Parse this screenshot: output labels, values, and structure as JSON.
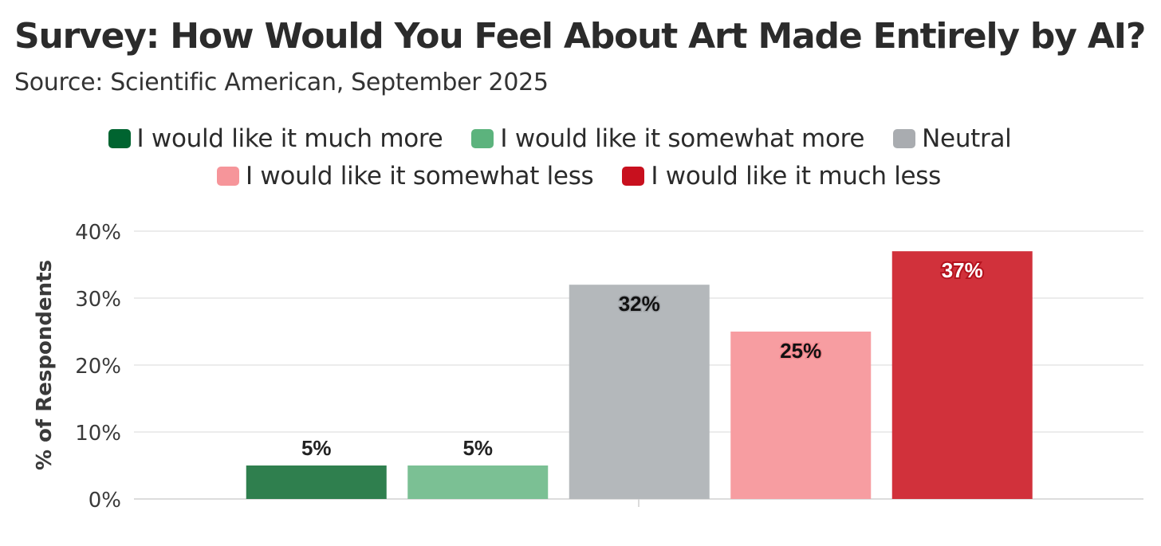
{
  "title": "Survey: How Would You Feel About Art Made Entirely by AI?",
  "subtitle": "Source: Scientific American, September 2025",
  "legend": [
    {
      "label": "I would like it much more",
      "color": "#006430"
    },
    {
      "label": "I would like it somewhat more",
      "color": "#5cb37d"
    },
    {
      "label": "Neutral",
      "color": "#a9acb0"
    },
    {
      "label": "I would like it somewhat less",
      "color": "#f6959a"
    },
    {
      "label": "I would like it much less",
      "color": "#c8101e"
    }
  ],
  "chart_data": {
    "type": "bar",
    "title": "Survey: How Would You Feel About Art Made Entirely by AI?",
    "subtitle": "Source: Scientific American, September 2025",
    "xlabel": "",
    "ylabel": "% of Respondents",
    "ylim": [
      0,
      40
    ],
    "yticks": [
      "0%",
      "10%",
      "20%",
      "30%",
      "40%"
    ],
    "grid": true,
    "legend_position": "top",
    "categories": [
      "I would like it much more",
      "I would like it somewhat more",
      "Neutral",
      "I would like it somewhat less",
      "I would like it much less"
    ],
    "values": [
      5,
      5,
      32,
      25,
      37
    ],
    "labels": [
      "5%",
      "5%",
      "32%",
      "25%",
      "37%"
    ],
    "colors": [
      "#2f7f4e",
      "#7bc094",
      "#b4b8bb",
      "#f79da1",
      "#d1313b"
    ]
  }
}
